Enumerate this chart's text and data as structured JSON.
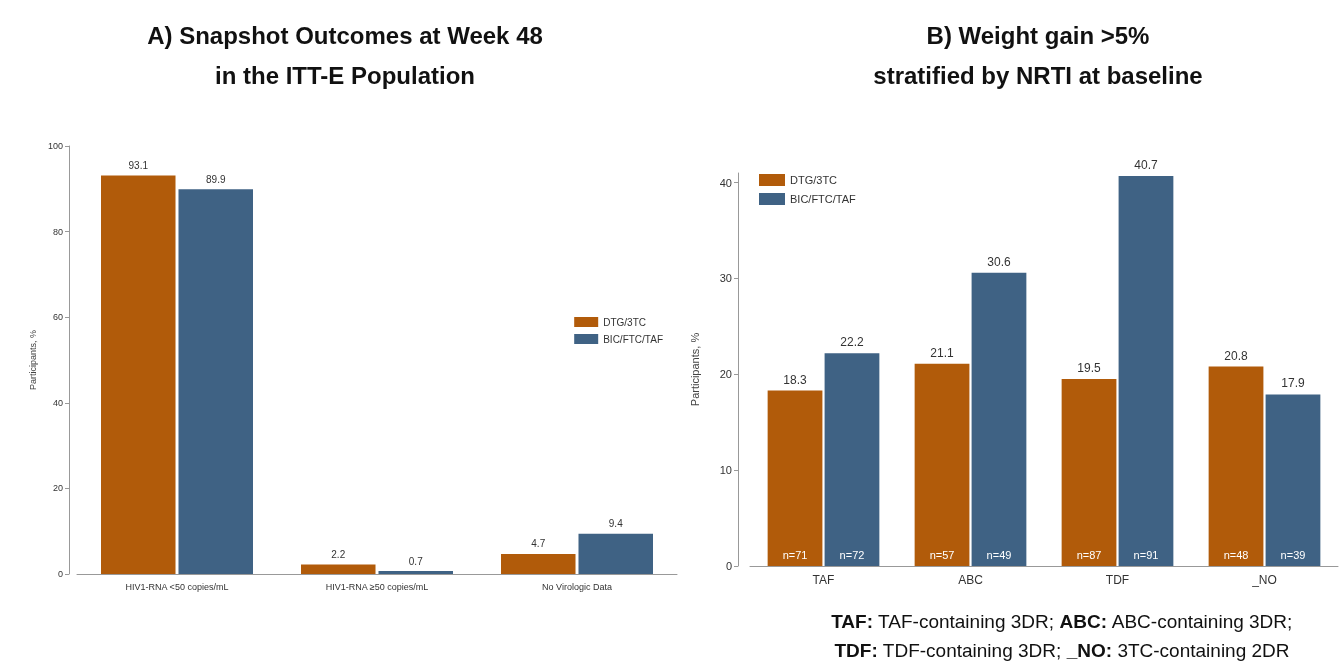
{
  "chart_data": [
    {
      "type": "bar",
      "title": "A) Snapshot Outcomes at Week 48\nin the ITT-E Population",
      "ylabel": "Participants, %",
      "categories": [
        "HIV1-RNA <50 copies/mL",
        "HIV1-RNA ≥50 copies/mL",
        "No Virologic Data"
      ],
      "series": [
        {
          "name": "DTG/3TC",
          "color": "#b15b0a",
          "values": [
            93.1,
            2.2,
            4.7
          ]
        },
        {
          "name": "BIC/FTC/TAF",
          "color": "#3f6284",
          "values": [
            89.9,
            0.7,
            9.4
          ]
        }
      ],
      "ylim": [
        0,
        100
      ],
      "yticks": [
        0,
        20,
        40,
        60,
        80,
        100
      ],
      "legend": "right",
      "data_labels": true
    },
    {
      "type": "bar",
      "title": "B) Weight gain >5%\nstratified by NRTI at baseline",
      "ylabel": "Participants, %",
      "categories": [
        "TAF",
        "ABC",
        "TDF",
        "_NO"
      ],
      "series": [
        {
          "name": "DTG/3TC",
          "color": "#b15b0a",
          "values": [
            18.3,
            21.1,
            19.5,
            20.8
          ]
        },
        {
          "name": "BIC/FTC/TAF",
          "color": "#3f6284",
          "values": [
            22.2,
            30.6,
            40.7,
            17.9
          ]
        }
      ],
      "ylim": [
        0,
        41
      ],
      "yticks": [
        0,
        10,
        20,
        30,
        40
      ],
      "legend": "top left",
      "data_labels": true,
      "annotations": [
        {
          "text": "n=71",
          "x": "TAF",
          "y": 0
        },
        {
          "text": "n=72",
          "x": "TAF",
          "y": 0
        },
        {
          "text": "n=57",
          "x": "ABC",
          "y": 0
        },
        {
          "text": "n=49",
          "x": "ABC",
          "y": 0
        },
        {
          "text": "n=87",
          "x": "TDF",
          "y": 0
        },
        {
          "text": "n=91",
          "x": "TDF",
          "y": 0
        },
        {
          "text": "n=48",
          "x": "_NO",
          "y": 0
        },
        {
          "text": "n=39",
          "x": "_NO",
          "y": 0
        },
        "TAF: TAF-containing 3DR; ABC: ABC-containing 3DR;",
        "TDF: TDF-containing 3DR; _NO: 3TC-containing 2DR"
      ]
    }
  ]
}
